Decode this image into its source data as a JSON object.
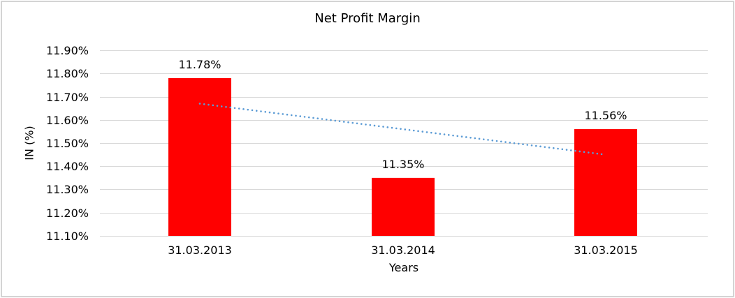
{
  "chart_data": {
    "type": "bar",
    "title": "Net Profit Margin",
    "xlabel": "Years",
    "ylabel": "IN (%)",
    "categories": [
      "31.03.2013",
      "31.03.2014",
      "31.03.2015"
    ],
    "values": [
      11.78,
      11.35,
      11.56
    ],
    "data_labels": [
      "11.78%",
      "11.35%",
      "11.56%"
    ],
    "y_tick_values": [
      11.9,
      11.8,
      11.7,
      11.6,
      11.5,
      11.4,
      11.3,
      11.2,
      11.1
    ],
    "y_tick_labels": [
      "11.90%",
      "11.80%",
      "11.70%",
      "11.60%",
      "11.50%",
      "11.40%",
      "11.30%",
      "11.20%",
      "11.10%"
    ],
    "ylim": [
      11.1,
      11.9
    ],
    "grid": true,
    "legend": "none",
    "bar_color": "#FF0000",
    "text_color": "#000000",
    "gridline_color": "#D9D9D9",
    "frame_color": "#D4D4D4",
    "trendline": {
      "type": "linear",
      "style": "dotted",
      "color": "#5B9BD5",
      "start_value": 11.67,
      "end_value": 11.45
    }
  }
}
